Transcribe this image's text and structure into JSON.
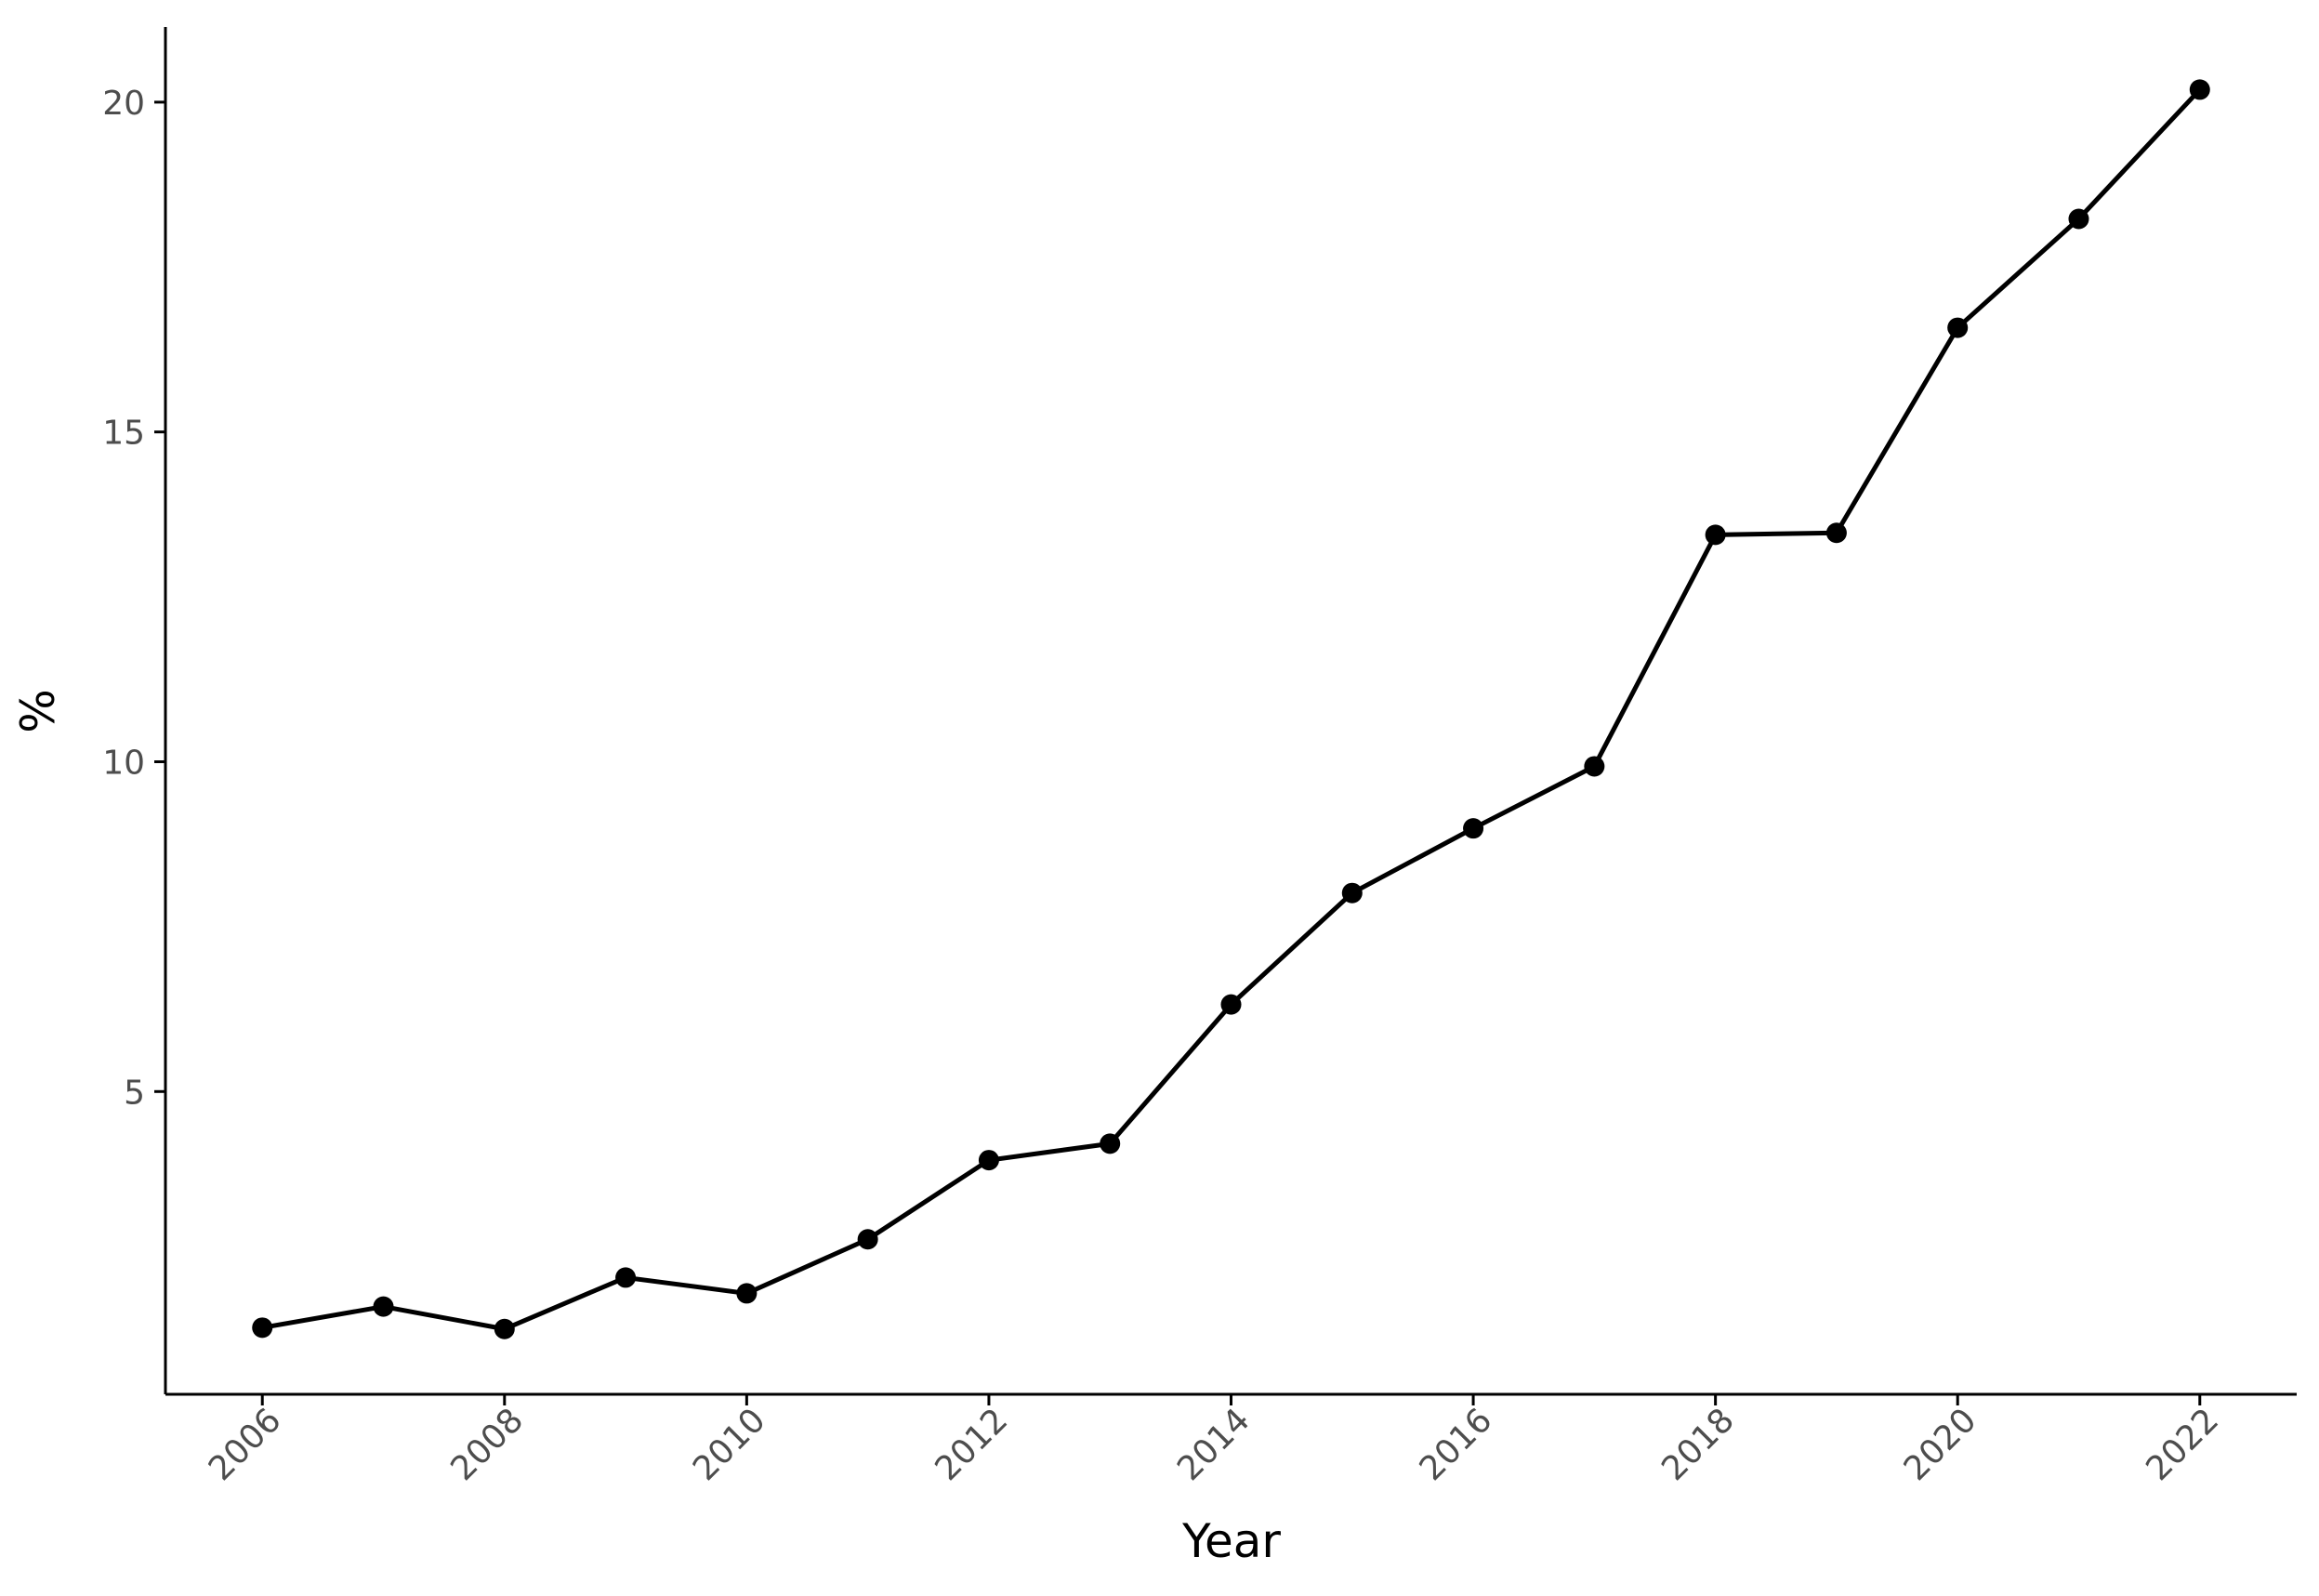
{
  "chart_data": {
    "type": "line",
    "x_label": "Year",
    "y_label": "%",
    "x": [
      2006,
      2007,
      2008,
      2009,
      2010,
      2011,
      2012,
      2013,
      2014,
      2015,
      2016,
      2017,
      2018,
      2019,
      2020,
      2021,
      2022
    ],
    "values": [
      1.42,
      1.74,
      1.4,
      2.18,
      1.94,
      2.76,
      3.96,
      4.21,
      6.32,
      8.01,
      8.99,
      9.93,
      13.44,
      13.47,
      16.58,
      18.23,
      20.19
    ],
    "color": "#000000",
    "xlim": [
      2005.2,
      2022.8
    ],
    "xticks": [
      2006,
      2008,
      2010,
      2012,
      2014,
      2016,
      2018,
      2020,
      2022
    ],
    "ylim": [
      0.41,
      21.14
    ],
    "yticks": [
      5,
      10,
      15,
      20
    ],
    "grid": false
  }
}
